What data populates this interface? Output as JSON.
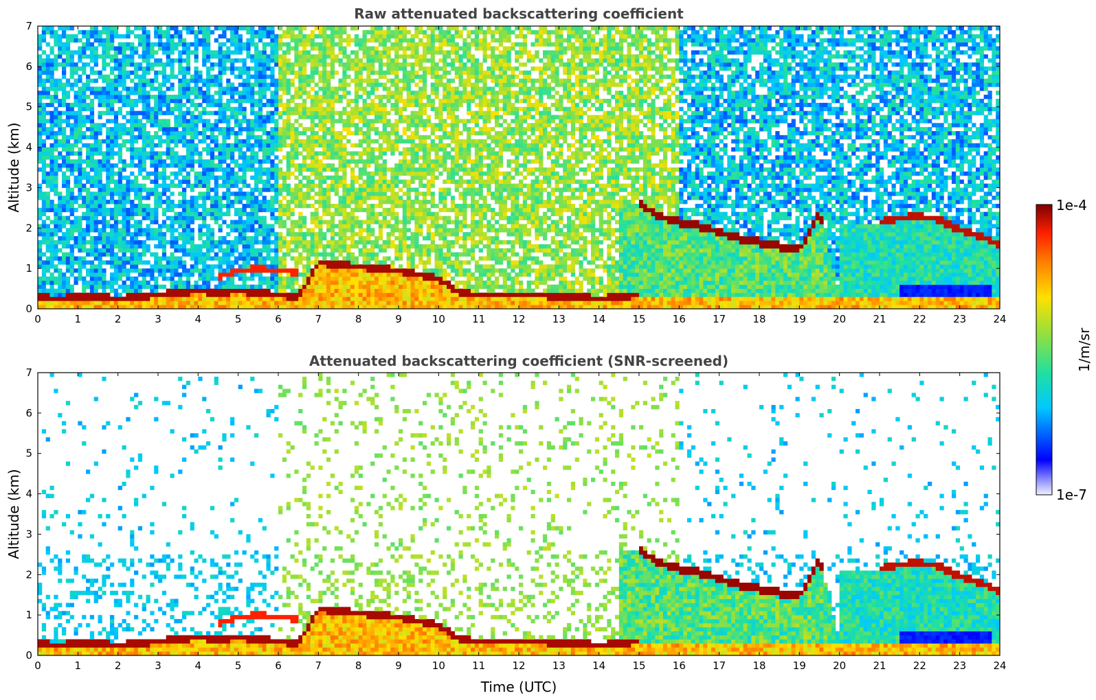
{
  "colors": {
    "background": "#ffffff",
    "title": "#444444",
    "axes": "#000000",
    "colormap": "jet"
  },
  "chart_data": [
    {
      "id": "raw",
      "type": "heatmap",
      "title": "Raw attenuated backscattering coefficient",
      "xlabel": "",
      "ylabel": "Altitude (km)",
      "xlim": [
        0,
        24
      ],
      "ylim": [
        0,
        7
      ],
      "x_ticks": [
        "0",
        "1",
        "2",
        "3",
        "4",
        "5",
        "6",
        "7",
        "8",
        "9",
        "10",
        "11",
        "12",
        "13",
        "14",
        "15",
        "16",
        "17",
        "18",
        "19",
        "20",
        "21",
        "22",
        "23",
        "24"
      ],
      "y_ticks": [
        "0",
        "1",
        "2",
        "3",
        "4",
        "5",
        "6",
        "7"
      ],
      "grid": false,
      "snr_screened": false,
      "layers": [
        {
          "name": "boundary-layer-top",
          "x": [
            0,
            0.5,
            1,
            1.5,
            2,
            2.5,
            3,
            3.5,
            4,
            4.5,
            5,
            5.5,
            6,
            6.5,
            7,
            7.5,
            8,
            8.5,
            9,
            9.5,
            10,
            10.5,
            11,
            11.5,
            12,
            12.5,
            13,
            13.5,
            14,
            14.5,
            15
          ],
          "y": [
            0.3,
            0.25,
            0.3,
            0.3,
            0.25,
            0.3,
            0.35,
            0.4,
            0.45,
            0.4,
            0.45,
            0.4,
            0.35,
            0.3,
            1.15,
            1.1,
            1.05,
            1.0,
            0.95,
            0.85,
            0.75,
            0.4,
            0.35,
            0.35,
            0.35,
            0.35,
            0.3,
            0.3,
            0.25,
            0.3,
            0.35
          ]
        },
        {
          "name": "elevated-layer",
          "x": [
            4.5,
            5,
            5.5,
            6,
            6.5
          ],
          "y": [
            0.8,
            0.95,
            1.0,
            0.95,
            0.9
          ]
        },
        {
          "name": "aerosol-layer-high",
          "x": [
            15,
            15.5,
            16,
            16.5,
            17,
            17.5,
            18,
            18.5,
            19,
            19.5,
            20
          ],
          "y": [
            2.6,
            2.3,
            2.15,
            2.05,
            1.9,
            1.75,
            1.65,
            1.55,
            1.45,
            2.4,
            0.3
          ]
        },
        {
          "name": "cloud-layer-late",
          "x": [
            21,
            21.5,
            22,
            22.5,
            23,
            23.5,
            24
          ],
          "y": [
            2.15,
            2.25,
            2.3,
            2.2,
            1.95,
            1.8,
            1.6
          ]
        }
      ]
    },
    {
      "id": "screened",
      "type": "heatmap",
      "title": "Attenuated backscattering coefficient (SNR-screened)",
      "xlabel": "Time (UTC)",
      "ylabel": "Altitude (km)",
      "xlim": [
        0,
        24
      ],
      "ylim": [
        0,
        7
      ],
      "x_ticks": [
        "0",
        "1",
        "2",
        "3",
        "4",
        "5",
        "6",
        "7",
        "8",
        "9",
        "10",
        "11",
        "12",
        "13",
        "14",
        "15",
        "16",
        "17",
        "18",
        "19",
        "20",
        "21",
        "22",
        "23",
        "24"
      ],
      "y_ticks": [
        "0",
        "1",
        "2",
        "3",
        "4",
        "5",
        "6",
        "7"
      ],
      "grid": false,
      "snr_screened": true
    }
  ],
  "colorbar": {
    "max_label": "1e-4",
    "min_label": "1e-7",
    "unit_label": "1/m/sr",
    "scale": "log",
    "range": [
      1e-07,
      0.0001
    ]
  }
}
